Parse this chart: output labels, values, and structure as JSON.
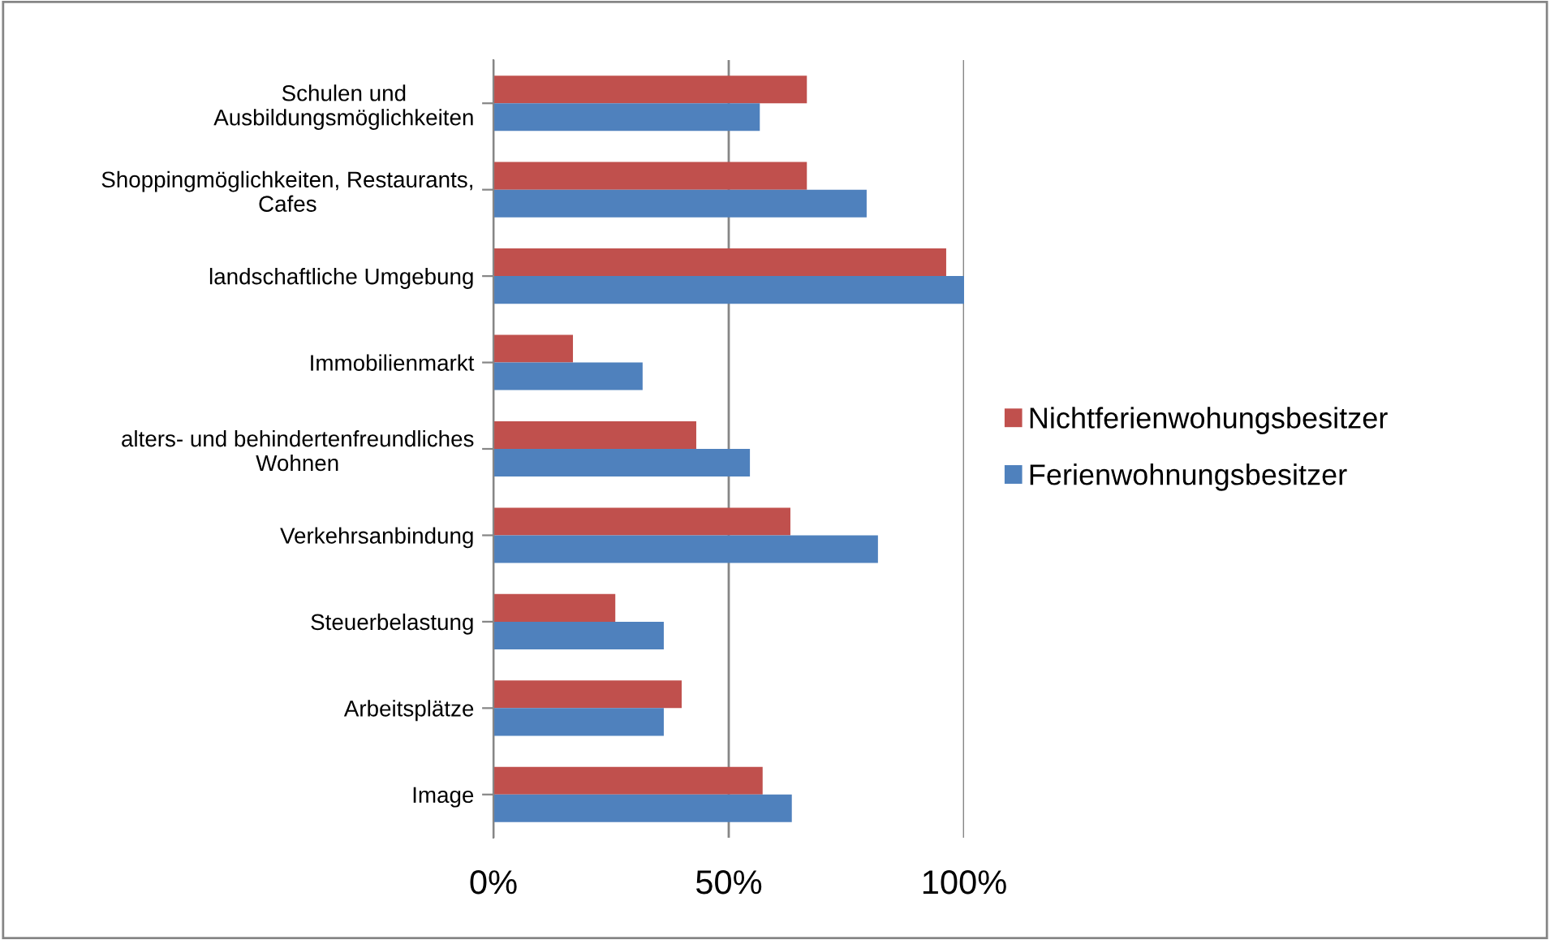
{
  "chart_data": {
    "type": "bar",
    "orientation": "horizontal",
    "categories": [
      "Schulen und\nAusbildungsmöglichkeiten",
      "Shoppingmöglichkeiten, Restaurants,\nCafes",
      "landschaftliche Umgebung",
      "Immobilienmarkt",
      "alters- und behindertenfreundliches\nWohnen",
      "Verkehrsanbindung",
      "Steuerbelastung",
      "Arbeitsplätze",
      "Image"
    ],
    "series": [
      {
        "name": "Nichtferienwohungsbesitzer",
        "color": "#c0504d",
        "values": [
          66.6,
          66.6,
          96.2,
          16.9,
          43.1,
          63.1,
          25.9,
          40,
          57.2
        ]
      },
      {
        "name": "Ferienwohnungsbesitzer",
        "color": "#4f81bd",
        "values": [
          56.6,
          79.3,
          100,
          31.7,
          54.5,
          81.7,
          36.2,
          36.2,
          63.4
        ]
      }
    ],
    "xlim": [
      0,
      100
    ],
    "xticks": [
      {
        "value": 0,
        "label": "0%"
      },
      {
        "value": 50,
        "label": "50%"
      },
      {
        "value": 100,
        "label": "100%"
      }
    ],
    "grid": "x",
    "legend": "right"
  }
}
